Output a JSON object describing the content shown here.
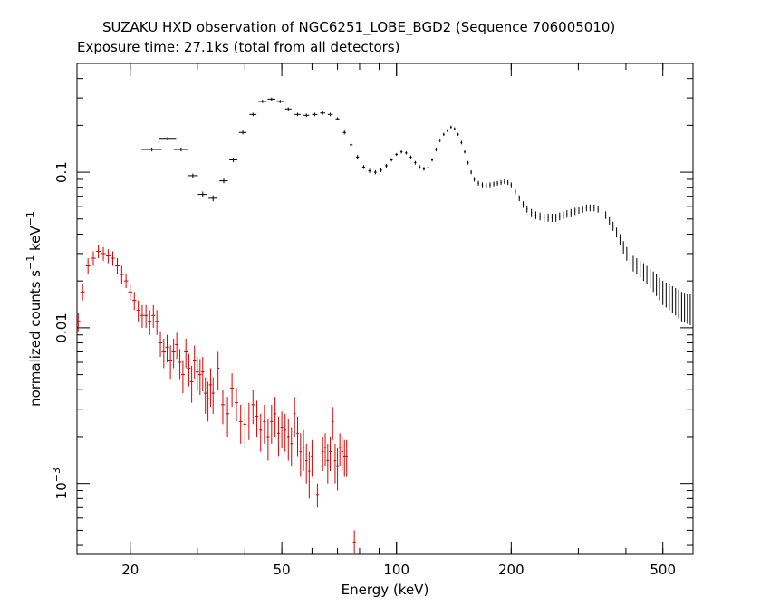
{
  "chart_data": {
    "type": "scatter",
    "title": "SUZAKU HXD observation of NGC6251_LOBE_BGD2 (Sequence 706005010)",
    "subtitle": "Exposure time: 27.1ks (total from all detectors)",
    "xlabel": "Energy (keV)",
    "ylabel_main": "normalized counts s",
    "ylabel_sup1": "−1",
    "ylabel_mid": " keV",
    "ylabel_sup2": "−1",
    "xscale": "log",
    "yscale": "log",
    "xlim": [
      14.5,
      600
    ],
    "ylim": [
      0.00035,
      0.5
    ],
    "x_ticks": [
      {
        "value": 20,
        "label": "20"
      },
      {
        "value": 50,
        "label": "50"
      },
      {
        "value": 100,
        "label": "100"
      },
      {
        "value": 200,
        "label": "200"
      },
      {
        "value": 500,
        "label": "500"
      }
    ],
    "y_ticks": [
      {
        "value": 0.1,
        "label": "0.1"
      },
      {
        "value": 0.01,
        "label": "0.01"
      },
      {
        "value": 0.001,
        "label": "10",
        "exp": "−3"
      }
    ],
    "series": [
      {
        "color": "#000000",
        "points": [
          [
            22.8,
            0.14,
            1.4,
            0.004
          ],
          [
            25.1,
            0.165,
            1.3,
            0.004
          ],
          [
            27.2,
            0.14,
            1.2,
            0.004
          ],
          [
            29.2,
            0.095,
            0.9,
            0.003
          ],
          [
            31.0,
            0.072,
            0.9,
            0.003
          ],
          [
            33.0,
            0.068,
            0.9,
            0.003
          ],
          [
            35.2,
            0.088,
            0.9,
            0.003
          ],
          [
            37.3,
            0.12,
            0.9,
            0.004
          ],
          [
            39.5,
            0.18,
            0.9,
            0.005
          ],
          [
            42.0,
            0.235,
            0.9,
            0.006
          ],
          [
            44.5,
            0.285,
            1.1,
            0.007
          ],
          [
            47.0,
            0.295,
            1.1,
            0.007
          ],
          [
            49.5,
            0.285,
            1.0,
            0.007
          ],
          [
            52.0,
            0.255,
            1.0,
            0.006
          ],
          [
            55.0,
            0.235,
            1.0,
            0.006
          ],
          [
            58.0,
            0.232,
            1.0,
            0.006
          ],
          [
            61.0,
            0.235,
            1.0,
            0.006
          ],
          [
            64.0,
            0.24,
            1.0,
            0.006
          ],
          [
            67.0,
            0.235,
            1.0,
            0.006
          ],
          [
            70.0,
            0.22,
            0.8,
            0.005
          ],
          [
            73.0,
            0.18,
            0.7,
            0.005
          ],
          [
            76.0,
            0.15,
            0.7,
            0.004
          ],
          [
            79.0,
            0.125,
            0.7,
            0.004
          ],
          [
            82.0,
            0.108,
            0.7,
            0.003
          ],
          [
            85.0,
            0.102,
            0.7,
            0.003
          ],
          [
            88.0,
            0.1,
            0.7,
            0.003
          ],
          [
            91.0,
            0.103,
            0.7,
            0.003
          ],
          [
            94.0,
            0.11,
            0.7,
            0.003
          ],
          [
            97.0,
            0.12,
            0.7,
            0.003
          ],
          [
            100.0,
            0.13,
            0.7,
            0.003
          ],
          [
            103.0,
            0.135,
            0.7,
            0.003
          ],
          [
            106.0,
            0.133,
            0.7,
            0.003
          ],
          [
            109.0,
            0.125,
            0.7,
            0.003
          ],
          [
            112.0,
            0.115,
            0.7,
            0.003
          ],
          [
            115.0,
            0.108,
            0.7,
            0.003
          ],
          [
            118.0,
            0.105,
            0.7,
            0.003
          ],
          [
            121.0,
            0.107,
            0.7,
            0.003
          ],
          [
            124.0,
            0.12,
            0.7,
            0.003
          ],
          [
            127.0,
            0.14,
            0.7,
            0.004
          ],
          [
            130.0,
            0.16,
            0.7,
            0.004
          ],
          [
            133.0,
            0.175,
            0.7,
            0.004
          ],
          [
            136.0,
            0.185,
            0.7,
            0.004
          ],
          [
            139.0,
            0.195,
            0.7,
            0.004
          ],
          [
            142.0,
            0.19,
            0.7,
            0.004
          ],
          [
            145.0,
            0.175,
            0.7,
            0.004
          ],
          [
            148.0,
            0.155,
            0.7,
            0.004
          ],
          [
            151.0,
            0.135,
            0.7,
            0.003
          ],
          [
            154.0,
            0.115,
            0.7,
            0.003
          ],
          [
            157.0,
            0.1,
            0.7,
            0.003
          ],
          [
            160.0,
            0.09,
            0.7,
            0.003
          ],
          [
            164.0,
            0.085,
            0.7,
            0.003
          ],
          [
            168.0,
            0.083,
            0.7,
            0.003
          ],
          [
            172.0,
            0.082,
            0.7,
            0.003
          ],
          [
            176.0,
            0.083,
            0.7,
            0.003
          ],
          [
            180.0,
            0.084,
            0.7,
            0.003
          ],
          [
            184.0,
            0.085,
            0.7,
            0.003
          ],
          [
            188.0,
            0.086,
            0.7,
            0.003
          ],
          [
            192.0,
            0.087,
            0.7,
            0.003
          ],
          [
            196.0,
            0.086,
            0.7,
            0.003
          ],
          [
            200.0,
            0.083,
            0.7,
            0.003
          ],
          [
            205.0,
            0.075,
            0.8,
            0.003
          ],
          [
            210.0,
            0.068,
            0.8,
            0.003
          ],
          [
            215.0,
            0.062,
            0.8,
            0.003
          ],
          [
            220.0,
            0.058,
            0.8,
            0.003
          ],
          [
            226.0,
            0.055,
            0.8,
            0.003
          ],
          [
            232.0,
            0.053,
            0.8,
            0.003
          ],
          [
            238.0,
            0.052,
            0.8,
            0.003
          ],
          [
            244.0,
            0.051,
            0.8,
            0.003
          ],
          [
            250.0,
            0.051,
            0.8,
            0.003
          ],
          [
            256.0,
            0.051,
            0.8,
            0.003
          ],
          [
            262.0,
            0.051,
            0.8,
            0.003
          ],
          [
            268.0,
            0.052,
            0.8,
            0.003
          ],
          [
            274.0,
            0.053,
            0.8,
            0.003
          ],
          [
            280.0,
            0.054,
            0.8,
            0.003
          ],
          [
            287.0,
            0.055,
            0.8,
            0.003
          ],
          [
            294.0,
            0.056,
            0.8,
            0.003
          ],
          [
            301.0,
            0.057,
            0.8,
            0.003
          ],
          [
            308.0,
            0.058,
            0.8,
            0.003
          ],
          [
            315.0,
            0.059,
            0.8,
            0.003
          ],
          [
            322.0,
            0.059,
            0.8,
            0.003
          ],
          [
            330.0,
            0.059,
            0.8,
            0.003
          ],
          [
            338.0,
            0.058,
            0.8,
            0.003
          ],
          [
            346.0,
            0.056,
            0.8,
            0.003
          ],
          [
            354.0,
            0.053,
            0.8,
            0.003
          ],
          [
            362.0,
            0.049,
            0.8,
            0.003
          ],
          [
            370.0,
            0.045,
            0.8,
            0.003
          ],
          [
            378.0,
            0.041,
            0.8,
            0.003
          ],
          [
            386.0,
            0.037,
            0.8,
            0.003
          ],
          [
            394.0,
            0.033,
            0.8,
            0.003
          ],
          [
            402.0,
            0.03,
            0.8,
            0.003
          ],
          [
            410.0,
            0.028,
            0.8,
            0.003
          ],
          [
            418.0,
            0.026,
            0.8,
            0.003
          ],
          [
            427.0,
            0.025,
            0.8,
            0.003
          ],
          [
            436.0,
            0.024,
            0.8,
            0.003
          ],
          [
            445.0,
            0.023,
            0.8,
            0.003
          ],
          [
            454.0,
            0.022,
            0.8,
            0.003
          ],
          [
            463.0,
            0.021,
            0.8,
            0.003
          ],
          [
            472.0,
            0.02,
            0.8,
            0.003
          ],
          [
            481.0,
            0.019,
            0.8,
            0.003
          ],
          [
            490.0,
            0.018,
            0.8,
            0.003
          ],
          [
            500.0,
            0.017,
            0.8,
            0.003
          ],
          [
            510.0,
            0.0165,
            0.8,
            0.003
          ],
          [
            520.0,
            0.016,
            0.8,
            0.003
          ],
          [
            530.0,
            0.0155,
            0.8,
            0.003
          ],
          [
            540.0,
            0.015,
            0.8,
            0.003
          ],
          [
            550.0,
            0.0145,
            0.8,
            0.003
          ],
          [
            560.0,
            0.014,
            0.8,
            0.003
          ],
          [
            570.0,
            0.0138,
            0.8,
            0.003
          ],
          [
            580.0,
            0.0136,
            0.8,
            0.003
          ],
          [
            590.0,
            0.0134,
            0.8,
            0.003
          ]
        ]
      },
      {
        "color": "#dd0000",
        "points": [
          [
            14.6,
            0.011,
            0.2,
            0.0015
          ],
          [
            15.0,
            0.017,
            0.2,
            0.002
          ],
          [
            15.5,
            0.025,
            0.2,
            0.003
          ],
          [
            16.0,
            0.028,
            0.25,
            0.003
          ],
          [
            16.5,
            0.031,
            0.25,
            0.003
          ],
          [
            17.0,
            0.03,
            0.25,
            0.003
          ],
          [
            17.5,
            0.029,
            0.25,
            0.003
          ],
          [
            18.0,
            0.028,
            0.25,
            0.003
          ],
          [
            18.5,
            0.025,
            0.25,
            0.003
          ],
          [
            19.0,
            0.022,
            0.25,
            0.003
          ],
          [
            19.5,
            0.02,
            0.25,
            0.002
          ],
          [
            20.0,
            0.017,
            0.25,
            0.002
          ],
          [
            20.5,
            0.015,
            0.25,
            0.002
          ],
          [
            21.0,
            0.013,
            0.25,
            0.002
          ],
          [
            21.5,
            0.012,
            0.25,
            0.002
          ],
          [
            22.0,
            0.012,
            0.25,
            0.002
          ],
          [
            22.5,
            0.011,
            0.25,
            0.002
          ],
          [
            23.0,
            0.012,
            0.25,
            0.002
          ],
          [
            23.5,
            0.011,
            0.25,
            0.002
          ],
          [
            24.0,
            0.008,
            0.3,
            0.0015
          ],
          [
            24.5,
            0.007,
            0.3,
            0.0015
          ],
          [
            25.0,
            0.0075,
            0.3,
            0.0015
          ],
          [
            25.5,
            0.0062,
            0.3,
            0.0015
          ],
          [
            26.0,
            0.007,
            0.3,
            0.0015
          ],
          [
            26.5,
            0.0078,
            0.3,
            0.0015
          ],
          [
            27.0,
            0.006,
            0.3,
            0.0013
          ],
          [
            27.5,
            0.005,
            0.3,
            0.0012
          ],
          [
            28.0,
            0.007,
            0.3,
            0.0015
          ],
          [
            28.5,
            0.0055,
            0.3,
            0.0013
          ],
          [
            29.0,
            0.0045,
            0.3,
            0.0012
          ],
          [
            29.5,
            0.0062,
            0.3,
            0.0015
          ],
          [
            30.0,
            0.0052,
            0.3,
            0.0013
          ],
          [
            30.5,
            0.005,
            0.3,
            0.0013
          ],
          [
            31.0,
            0.0052,
            0.3,
            0.0013
          ],
          [
            31.5,
            0.0038,
            0.3,
            0.001
          ],
          [
            32.0,
            0.0035,
            0.3,
            0.001
          ],
          [
            32.5,
            0.0043,
            0.3,
            0.0012
          ],
          [
            33.0,
            0.0038,
            0.3,
            0.001
          ],
          [
            34.0,
            0.0055,
            0.3,
            0.0015
          ],
          [
            35.0,
            0.0032,
            0.4,
            0.0008
          ],
          [
            36.0,
            0.0028,
            0.4,
            0.0008
          ],
          [
            37.0,
            0.0041,
            0.4,
            0.001
          ],
          [
            38.0,
            0.0033,
            0.4,
            0.0008
          ],
          [
            39.0,
            0.0025,
            0.4,
            0.0007
          ],
          [
            40.0,
            0.0024,
            0.4,
            0.0007
          ],
          [
            41.0,
            0.0026,
            0.4,
            0.0007
          ],
          [
            42.0,
            0.0032,
            0.4,
            0.0008
          ],
          [
            43.0,
            0.0027,
            0.4,
            0.0007
          ],
          [
            44.0,
            0.0022,
            0.4,
            0.0006
          ],
          [
            45.0,
            0.0025,
            0.4,
            0.0007
          ],
          [
            46.0,
            0.002,
            0.4,
            0.0006
          ],
          [
            47.0,
            0.0025,
            0.4,
            0.0007
          ],
          [
            48.0,
            0.0028,
            0.4,
            0.0008
          ],
          [
            49.0,
            0.0021,
            0.4,
            0.0006
          ],
          [
            50.0,
            0.0023,
            0.4,
            0.0006
          ],
          [
            51.0,
            0.0022,
            0.4,
            0.0006
          ],
          [
            52.0,
            0.002,
            0.4,
            0.0006
          ],
          [
            53.0,
            0.0018,
            0.4,
            0.0005
          ],
          [
            54.0,
            0.0028,
            0.4,
            0.0008
          ],
          [
            55.0,
            0.0021,
            0.4,
            0.0006
          ],
          [
            56.0,
            0.0016,
            0.4,
            0.0005
          ],
          [
            57.0,
            0.0017,
            0.4,
            0.0005
          ],
          [
            58.0,
            0.0014,
            0.4,
            0.0004
          ],
          [
            59.0,
            0.0012,
            0.4,
            0.0004
          ],
          [
            60.0,
            0.0015,
            0.4,
            0.0004
          ],
          [
            62.0,
            0.00085,
            0.5,
            0.00015
          ],
          [
            64.0,
            0.0016,
            0.5,
            0.0004
          ],
          [
            65.0,
            0.0017,
            0.5,
            0.0004
          ],
          [
            66.0,
            0.0014,
            0.5,
            0.0004
          ],
          [
            67.0,
            0.0016,
            0.5,
            0.0004
          ],
          [
            68.0,
            0.0025,
            0.5,
            0.0006
          ],
          [
            69.0,
            0.0014,
            0.5,
            0.0004
          ],
          [
            70.0,
            0.0013,
            0.5,
            0.0004
          ],
          [
            71.0,
            0.0017,
            0.5,
            0.0004
          ],
          [
            72.0,
            0.0016,
            0.5,
            0.0004
          ],
          [
            73.0,
            0.0015,
            0.5,
            0.0004
          ],
          [
            74.0,
            0.0015,
            0.5,
            0.0004
          ],
          [
            77.5,
            0.00042,
            0.7,
            8e-05
          ]
        ]
      }
    ]
  }
}
